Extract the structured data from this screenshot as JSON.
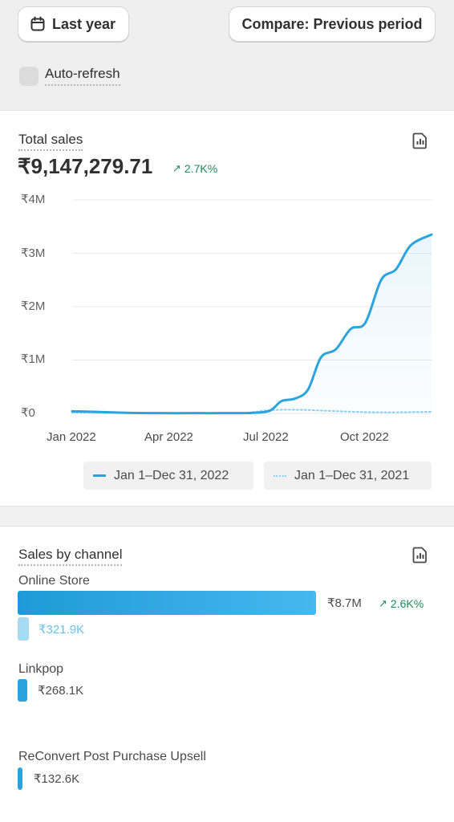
{
  "toolbar": {
    "date_range_label": "Last year",
    "compare_label": "Compare: Previous period",
    "auto_refresh_label": "Auto-refresh"
  },
  "total_sales": {
    "title": "Total sales",
    "value": "₹9,147,279.71",
    "delta": "2.7K%",
    "icon": "report-icon",
    "y_ticks": [
      "₹4M",
      "₹3M",
      "₹2M",
      "₹1M",
      "₹0"
    ],
    "x_ticks": [
      "Jan 2022",
      "Apr 2022",
      "Jul 2022",
      "Oct 2022"
    ],
    "legend": [
      "Jan 1–Dec 31, 2022",
      "Jan 1–Dec 31, 2021"
    ]
  },
  "chart_data": {
    "type": "line",
    "title": "Total sales",
    "ylim": [
      0,
      4000000
    ],
    "x_ticks": [
      "Jan 2022",
      "Apr 2022",
      "Jul 2022",
      "Oct 2022"
    ],
    "series": [
      {
        "name": "Jan 1–Dec 31, 2022",
        "style": "solid",
        "color": "#2aa3df",
        "points": [
          [
            "2022-01-01",
            40000
          ],
          [
            "2022-02-01",
            25000
          ],
          [
            "2022-03-01",
            10000
          ],
          [
            "2022-04-01",
            5000
          ],
          [
            "2022-05-01",
            5000
          ],
          [
            "2022-06-01",
            5000
          ],
          [
            "2022-07-01",
            10000
          ],
          [
            "2022-07-20",
            50000
          ],
          [
            "2022-08-01",
            230000
          ],
          [
            "2022-08-15",
            280000
          ],
          [
            "2022-08-28",
            450000
          ],
          [
            "2022-09-10",
            1050000
          ],
          [
            "2022-09-25",
            1200000
          ],
          [
            "2022-10-10",
            1580000
          ],
          [
            "2022-10-25",
            1700000
          ],
          [
            "2022-11-10",
            2500000
          ],
          [
            "2022-11-25",
            2700000
          ],
          [
            "2022-12-10",
            3150000
          ],
          [
            "2022-12-31",
            3350000
          ]
        ]
      },
      {
        "name": "Jan 1–Dec 31, 2021",
        "style": "dotted",
        "color": "#8fd0ef",
        "points": [
          [
            "2022-01-01",
            15000
          ],
          [
            "2022-03-01",
            8000
          ],
          [
            "2022-05-01",
            8000
          ],
          [
            "2022-06-20",
            10000
          ],
          [
            "2022-07-01",
            20000
          ],
          [
            "2022-07-20",
            60000
          ],
          [
            "2022-08-15",
            70000
          ],
          [
            "2022-09-15",
            50000
          ],
          [
            "2022-10-15",
            30000
          ],
          [
            "2022-11-15",
            20000
          ],
          [
            "2022-12-31",
            30000
          ]
        ]
      }
    ]
  },
  "sales_by_channel": {
    "title": "Sales by channel",
    "icon": "report-icon",
    "channels": [
      {
        "name": "Online Store",
        "value": "₹8.7M",
        "delta": "2.6K%",
        "prev_value": "₹321.9K",
        "bar_fraction": 1.0,
        "prev_fraction": 0.037
      },
      {
        "name": "Linkpop",
        "value": "₹268.1K",
        "bar_fraction": 0.031
      },
      {
        "name": "ReConvert Post Purchase Upsell",
        "value": "₹132.6K",
        "bar_fraction": 0.015
      }
    ],
    "colors": {
      "bar": "#2aa3df",
      "bar_light": "#a7daf3"
    }
  }
}
